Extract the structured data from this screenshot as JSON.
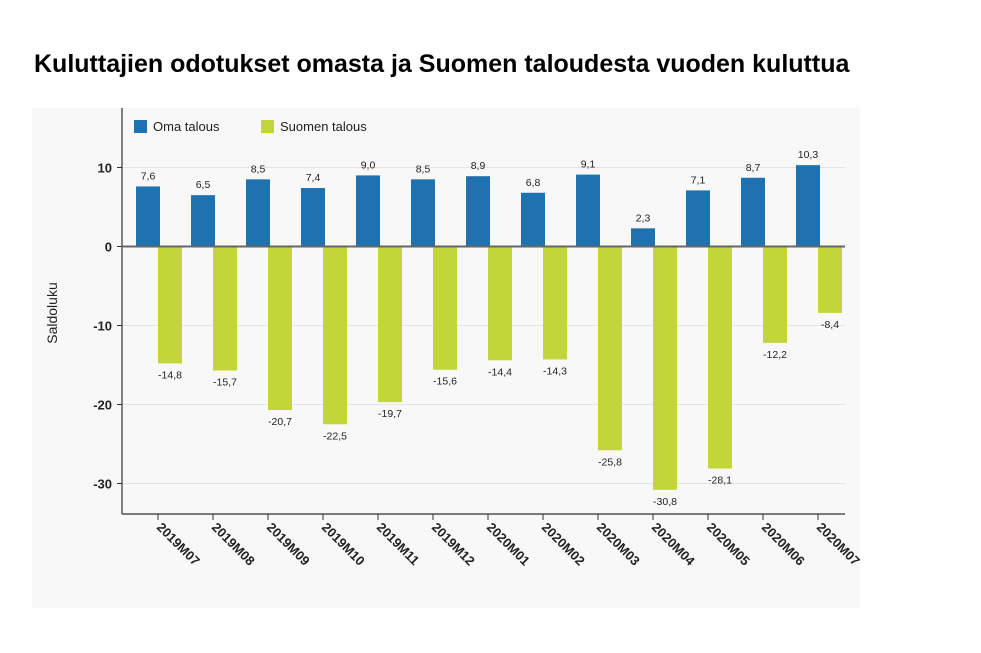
{
  "title": "Kuluttajien odotukset omasta ja Suomen taloudesta vuoden kuluttua",
  "chart_data": {
    "type": "bar",
    "categories": [
      "2019M07",
      "2019M08",
      "2019M09",
      "2019M10",
      "2019M11",
      "2019M12",
      "2020M01",
      "2020M02",
      "2020M03",
      "2020M04",
      "2020M05",
      "2020M06",
      "2020M07"
    ],
    "series": [
      {
        "name": "Oma talous",
        "color": "#1f72b0",
        "values": [
          7.6,
          6.5,
          8.5,
          7.4,
          9.0,
          8.5,
          8.9,
          6.8,
          9.1,
          2.3,
          7.1,
          8.7,
          10.3
        ],
        "labels": [
          "7,6",
          "6,5",
          "8,5",
          "7,4",
          "9,0",
          "8,5",
          "8,9",
          "6,8",
          "9,1",
          "2,3",
          "7,1",
          "8,7",
          "10,3"
        ]
      },
      {
        "name": "Suomen talous",
        "color": "#c2d63a",
        "values": [
          -14.8,
          -15.7,
          -20.7,
          -22.5,
          -19.7,
          -15.6,
          -14.4,
          -14.3,
          -25.8,
          -30.8,
          -28.1,
          -12.2,
          -8.4
        ],
        "labels": [
          "-14,8",
          "-15,7",
          "-20,7",
          "-22,5",
          "-19,7",
          "-15,6",
          "-14,4",
          "-14,3",
          "-25,8",
          "-30,8",
          "-28,1",
          "-12,2",
          "-8,4"
        ]
      }
    ],
    "ylabel": "Saldoluku",
    "yticks": [
      10,
      0,
      -10,
      -20,
      -30
    ],
    "ytick_labels": [
      "10",
      "0",
      "-10",
      "-20",
      "-30"
    ],
    "ylim": [
      -34,
      17.5
    ],
    "grid": true,
    "legend_position": "top-left"
  }
}
